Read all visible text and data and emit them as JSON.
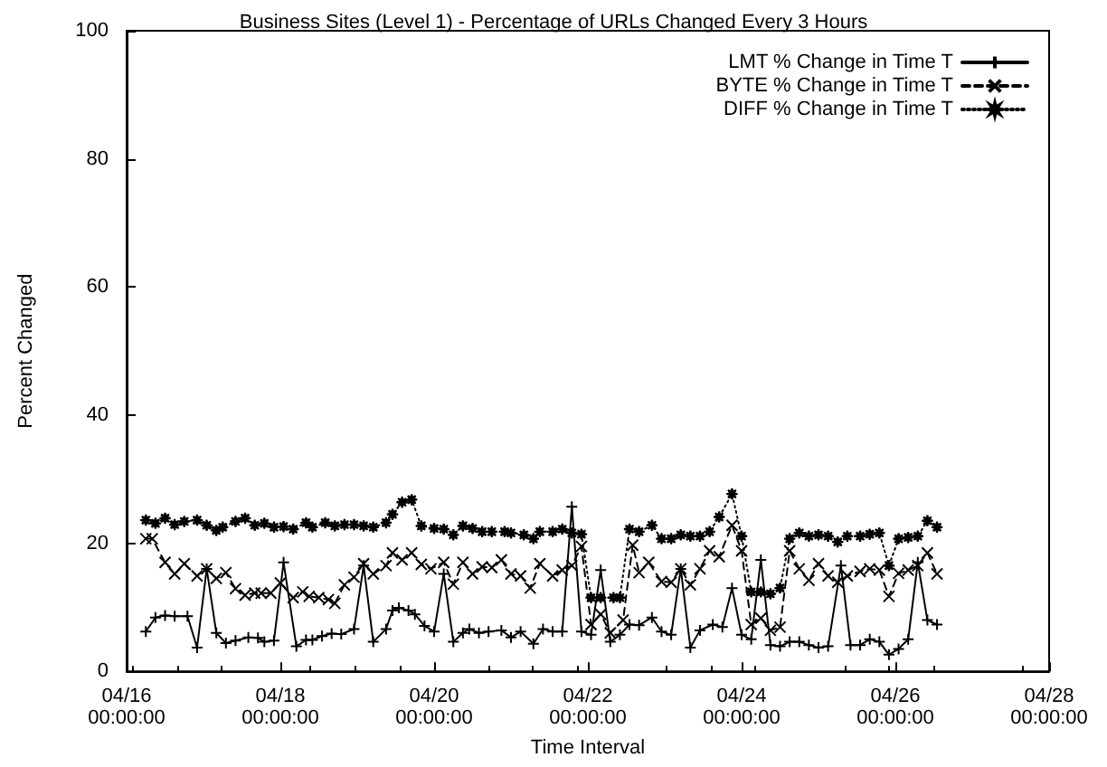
{
  "chart_data": {
    "type": "line",
    "title": "Business Sites (Level 1) - Percentage of URLs Changed Every 3 Hours",
    "xlabel": "Time Interval",
    "ylabel": "Percent Changed",
    "xlim": [
      "--04-16",
      "--04-28"
    ],
    "xticks": [
      {
        "value": "--04-16",
        "label": "04/16\n00:00:00"
      },
      {
        "value": "--04-18",
        "label": "04/18\n00:00:00"
      },
      {
        "value": "--04-20",
        "label": "04/20\n00:00:00"
      },
      {
        "value": "--04-22",
        "label": "04/22\n00:00:00"
      },
      {
        "value": "--04-24",
        "label": "04/24\n00:00:00"
      },
      {
        "value": "--04-26",
        "label": "04/26\n00:00:00"
      },
      {
        "value": "--04-28",
        "label": "04/28\n00:00:00"
      }
    ],
    "ylim": [
      0,
      100
    ],
    "yticks": [
      0,
      20,
      40,
      60,
      80,
      100
    ],
    "grid": false,
    "legend": "top right",
    "series": [
      {
        "name": "LMT % Change in Time T",
        "color": "#000000",
        "marker": "cross",
        "line_style": "solid",
        "x": [
          "--04-16T06:00",
          "--04-16T09:00",
          "--04-16T12:00",
          "--04-16T15:00",
          "--04-16T19:00",
          "--04-16T22:00",
          "--04-17T01:00",
          "--04-17T04:00",
          "--04-17T07:00",
          "--04-17T10:00",
          "--04-17T14:00",
          "--04-17T17:00",
          "--04-17T19:00",
          "--04-17T22:00",
          "--04-18T01:00",
          "--04-18T05:00",
          "--04-18T08:00",
          "--04-18T10:00",
          "--04-18T13:00",
          "--04-18T16:00",
          "--04-18T19:00",
          "--04-18T23:00",
          "--04-19T02:00",
          "--04-19T05:00",
          "--04-19T09:00",
          "--04-19T11:00",
          "--04-19T13:00",
          "--04-19T16:00",
          "--04-19T18:00",
          "--04-19T21:00",
          "--04-20T00:00",
          "--04-20T03:00",
          "--04-20T06:00",
          "--04-20T09:00",
          "--04-20T11:00",
          "--04-20T14:00",
          "--04-20T17:00",
          "--04-20T21:00",
          "--04-21T00:00",
          "--04-21T03:00",
          "--04-21T07:00",
          "--04-21T10:00",
          "--04-21T13:00",
          "--04-21T16:00",
          "--04-21T19:00",
          "--04-21T22:00",
          "--04-22T01:00",
          "--04-22T04:00",
          "--04-22T07:00",
          "--04-22T10:00",
          "--04-22T13:00",
          "--04-22T16:00",
          "--04-22T20:00",
          "--04-22T23:00",
          "--04-23T02:00",
          "--04-23T05:00",
          "--04-23T08:00",
          "--04-23T11:00",
          "--04-23T15:00",
          "--04-23T18:00",
          "--04-23T21:00",
          "--04-24T00:00",
          "--04-24T03:00",
          "--04-24T06:00",
          "--04-24T09:00",
          "--04-24T12:00",
          "--04-24T15:00",
          "--04-24T18:00",
          "--04-24T21:00",
          "--04-25T00:00",
          "--04-25T03:00",
          "--04-25T07:00",
          "--04-25T10:00",
          "--04-25T13:00",
          "--04-25T16:00",
          "--04-25T19:00",
          "--04-25T22:00",
          "--04-26T01:00",
          "--04-26T04:00",
          "--04-26T07:00",
          "--04-26T10:00",
          "--04-26T13:00"
        ],
        "values": [
          6.2,
          8.4,
          8.7,
          8.6,
          8.6,
          3.7,
          16,
          6,
          4.4,
          4.8,
          5.3,
          5.2,
          4.6,
          4.8,
          17,
          3.9,
          4.9,
          4.9,
          5.5,
          5.9,
          5.8,
          6.6,
          16.5,
          4.6,
          6.6,
          9.5,
          9.9,
          9.5,
          8.9,
          7.1,
          6.2,
          15.2,
          4.6,
          6,
          6.6,
          6,
          6.2,
          6.4,
          5.3,
          6.2,
          4.3,
          6.6,
          6.2,
          6.2,
          25.7,
          6.2,
          5.7,
          15.8,
          4.6,
          5.7,
          7.3,
          7.2,
          8.4,
          6.2,
          5.7,
          16,
          3.7,
          6.4,
          7.3,
          6.9,
          13,
          5.7,
          5,
          17.4,
          4.1,
          3.9,
          4.6,
          4.6,
          4.1,
          3.7,
          3.9,
          16.5,
          4.1,
          4.1,
          5,
          4.6,
          2.6,
          3.5,
          5,
          17,
          8,
          7.3
        ]
      },
      {
        "name": "BYTE % Change in Time T",
        "color": "#000000",
        "marker": "x",
        "line_style": "dashed",
        "x": [
          "--04-16T06:00",
          "--04-16T08:00",
          "--04-16T12:00",
          "--04-16T15:00",
          "--04-16T18:00",
          "--04-16T22:00",
          "--04-17T01:00",
          "--04-17T04:00",
          "--04-17T07:00",
          "--04-17T10:00",
          "--04-17T13:00",
          "--04-17T16:00",
          "--04-17T18:00",
          "--04-17T21:00",
          "--04-18T00:00",
          "--04-18T04:00",
          "--04-18T07:00",
          "--04-18T09:00",
          "--04-18T12:00",
          "--04-18T15:00",
          "--04-18T17:00",
          "--04-18T20:00",
          "--04-18T23:00",
          "--04-19T02:00",
          "--04-19T05:00",
          "--04-19T09:00",
          "--04-19T11:00",
          "--04-19T14:00",
          "--04-19T17:00",
          "--04-19T20:00",
          "--04-19T23:00",
          "--04-20T03:00",
          "--04-20T06:00",
          "--04-20T09:00",
          "--04-20T12:00",
          "--04-20T15:00",
          "--04-20T18:00",
          "--04-20T21:00",
          "--04-21T00:00",
          "--04-21T03:00",
          "--04-21T06:00",
          "--04-21T09:00",
          "--04-21T13:00",
          "--04-21T16:00",
          "--04-21T19:00",
          "--04-21T22:00",
          "--04-22T01:00",
          "--04-22T04:00",
          "--04-22T07:00",
          "--04-22T11:00",
          "--04-22T14:00",
          "--04-22T16:00",
          "--04-22T19:00",
          "--04-22T23:00",
          "--04-23T02:00",
          "--04-23T05:00",
          "--04-23T08:00",
          "--04-23T11:00",
          "--04-23T14:00",
          "--04-23T17:00",
          "--04-23T21:00",
          "--04-24T00:00",
          "--04-24T03:00",
          "--04-24T06:00",
          "--04-24T09:00",
          "--04-24T12:00",
          "--04-24T15:00",
          "--04-24T18:00",
          "--04-24T21:00",
          "--04-25T00:00",
          "--04-25T03:00",
          "--04-25T06:00",
          "--04-25T09:00",
          "--04-25T13:00",
          "--04-25T16:00",
          "--04-25T19:00",
          "--04-25T22:00",
          "--04-26T01:00",
          "--04-26T04:00",
          "--04-26T07:00",
          "--04-26T10:00",
          "--04-26T13:00"
        ],
        "values": [
          20.7,
          20.7,
          17,
          15.2,
          16.8,
          14.9,
          16,
          14.5,
          15.4,
          12.9,
          11.9,
          12.2,
          12.2,
          12.2,
          13.8,
          11.5,
          12.4,
          11.7,
          11.5,
          11.2,
          10.6,
          13.5,
          14.7,
          16.8,
          15.2,
          16.5,
          18.5,
          17.4,
          18.5,
          16.7,
          16,
          17,
          13.6,
          17,
          15.2,
          16.3,
          16.2,
          17.4,
          15.2,
          14.9,
          13,
          16.8,
          14.9,
          15.8,
          16.5,
          19.5,
          7.3,
          8.9,
          6,
          8,
          19.7,
          15.4,
          17,
          14,
          13.9,
          16,
          13.5,
          16,
          18.8,
          17.9,
          22.8,
          18.8,
          7.3,
          8.3,
          6.4,
          6.9,
          18.8,
          16,
          14.2,
          16.8,
          14.9,
          13.9,
          14.9,
          15.6,
          16,
          15.8,
          11.7,
          15.3,
          15.8,
          16.5,
          18.5,
          15.2
        ]
      },
      {
        "name": "DIFF % Change in Time T",
        "color": "#000000",
        "marker": "star",
        "line_style": "dotted",
        "x": [
          "--04-16T06:00",
          "--04-16T09:00",
          "--04-16T12:00",
          "--04-16T15:00",
          "--04-16T18:00",
          "--04-16T22:00",
          "--04-17T01:00",
          "--04-17T04:00",
          "--04-17T06:00",
          "--04-17T10:00",
          "--04-17T13:00",
          "--04-17T16:00",
          "--04-17T19:00",
          "--04-17T22:00",
          "--04-18T01:00",
          "--04-18T04:00",
          "--04-18T08:00",
          "--04-18T10:00",
          "--04-18T14:00",
          "--04-18T17:00",
          "--04-18T20:00",
          "--04-18T23:00",
          "--04-19T02:00",
          "--04-19T05:00",
          "--04-19T09:00",
          "--04-19T11:00",
          "--04-19T14:00",
          "--04-19T17:00",
          "--04-19T20:00",
          "--04-20T00:00",
          "--04-20T03:00",
          "--04-20T06:00",
          "--04-20T09:00",
          "--04-20T12:00",
          "--04-20T15:00",
          "--04-20T18:00",
          "--04-20T22:00",
          "--04-21T00:00",
          "--04-21T04:00",
          "--04-21T07:00",
          "--04-21T09:00",
          "--04-21T13:00",
          "--04-21T16:00",
          "--04-21T19:00",
          "--04-21T22:00",
          "--04-22T01:00",
          "--04-22T04:00",
          "--04-22T08:00",
          "--04-22T10:00",
          "--04-22T13:00",
          "--04-22T16:00",
          "--04-22T20:00",
          "--04-22T23:00",
          "--04-23T02:00",
          "--04-23T05:00",
          "--04-23T08:00",
          "--04-23T11:00",
          "--04-23T14:00",
          "--04-23T17:00",
          "--04-23T21:00",
          "--04-24T00:00",
          "--04-24T03:00",
          "--04-24T06:00",
          "--04-24T09:00",
          "--04-24T12:00",
          "--04-24T15:00",
          "--04-24T18:00",
          "--04-24T21:00",
          "--04-25T00:00",
          "--04-25T03:00",
          "--04-25T06:00",
          "--04-25T09:00",
          "--04-25T13:00",
          "--04-25T16:00",
          "--04-25T19:00",
          "--04-25T22:00",
          "--04-26T01:00",
          "--04-26T04:00",
          "--04-26T07:00",
          "--04-26T10:00",
          "--04-26T13:00"
        ],
        "values": [
          23.6,
          23.1,
          23.9,
          22.9,
          23.4,
          23.6,
          22.8,
          22,
          22.5,
          23.4,
          23.9,
          22.8,
          23.1,
          22.5,
          22.6,
          22.2,
          23.2,
          22.5,
          23.2,
          22.7,
          22.9,
          22.9,
          22.7,
          22.5,
          23.2,
          24.5,
          26.4,
          26.8,
          22.7,
          22.3,
          22.2,
          21.3,
          22.7,
          22.3,
          21.8,
          21.8,
          21.8,
          21.6,
          21.3,
          20.7,
          21.8,
          21.8,
          22.2,
          21.6,
          21.4,
          11.5,
          11.5,
          11.5,
          11.5,
          22.2,
          21.8,
          22.8,
          20.7,
          20.7,
          21.3,
          21.1,
          21.1,
          21.8,
          24.1,
          27.7,
          21.1,
          12.4,
          12.4,
          12.1,
          13,
          20.7,
          21.6,
          21.1,
          21.3,
          21.1,
          20.2,
          21.1,
          21.1,
          21.4,
          21.6,
          16.5,
          20.7,
          20.9,
          21.1,
          23.5,
          22.5
        ]
      }
    ]
  }
}
